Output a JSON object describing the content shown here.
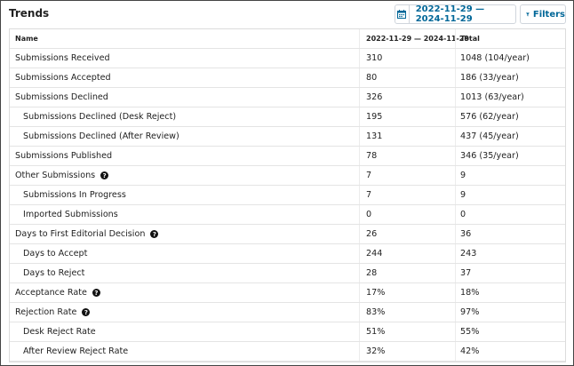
{
  "header": {
    "title": "Trends",
    "date_range_label": "2022-11-29 — 2024-11-29",
    "filters_label": "Filters"
  },
  "table": {
    "columns": [
      "Name",
      "2022-11-29 — 2024-11-29",
      "Total"
    ],
    "rows": [
      {
        "name": "Submissions Received",
        "range": "310",
        "total": "1048 (104/year)",
        "indent": false,
        "help": false
      },
      {
        "name": "Submissions Accepted",
        "range": "80",
        "total": "186 (33/year)",
        "indent": false,
        "help": false
      },
      {
        "name": "Submissions Declined",
        "range": "326",
        "total": "1013 (63/year)",
        "indent": false,
        "help": false
      },
      {
        "name": "Submissions Declined (Desk Reject)",
        "range": "195",
        "total": "576 (62/year)",
        "indent": true,
        "help": false
      },
      {
        "name": "Submissions Declined (After Review)",
        "range": "131",
        "total": "437 (45/year)",
        "indent": true,
        "help": false
      },
      {
        "name": "Submissions Published",
        "range": "78",
        "total": "346 (35/year)",
        "indent": false,
        "help": false
      },
      {
        "name": "Other Submissions",
        "range": "7",
        "total": "9",
        "indent": false,
        "help": true
      },
      {
        "name": "Submissions In Progress",
        "range": "7",
        "total": "9",
        "indent": true,
        "help": false
      },
      {
        "name": "Imported Submissions",
        "range": "0",
        "total": "0",
        "indent": true,
        "help": false
      },
      {
        "name": "Days to First Editorial Decision",
        "range": "26",
        "total": "36",
        "indent": false,
        "help": true
      },
      {
        "name": "Days to Accept",
        "range": "244",
        "total": "243",
        "indent": true,
        "help": false
      },
      {
        "name": "Days to Reject",
        "range": "28",
        "total": "37",
        "indent": true,
        "help": false
      },
      {
        "name": "Acceptance Rate",
        "range": "17%",
        "total": "18%",
        "indent": false,
        "help": true
      },
      {
        "name": "Rejection Rate",
        "range": "83%",
        "total": "97%",
        "indent": false,
        "help": true
      },
      {
        "name": "Desk Reject Rate",
        "range": "51%",
        "total": "55%",
        "indent": true,
        "help": false
      },
      {
        "name": "After Review Reject Rate",
        "range": "32%",
        "total": "42%",
        "indent": true,
        "help": false
      }
    ]
  },
  "icons": {
    "calendar": "calendar-icon",
    "filter": "filter-icon",
    "help": "help-icon"
  },
  "colors": {
    "accent": "#006798",
    "border": "#dcdcdc"
  }
}
